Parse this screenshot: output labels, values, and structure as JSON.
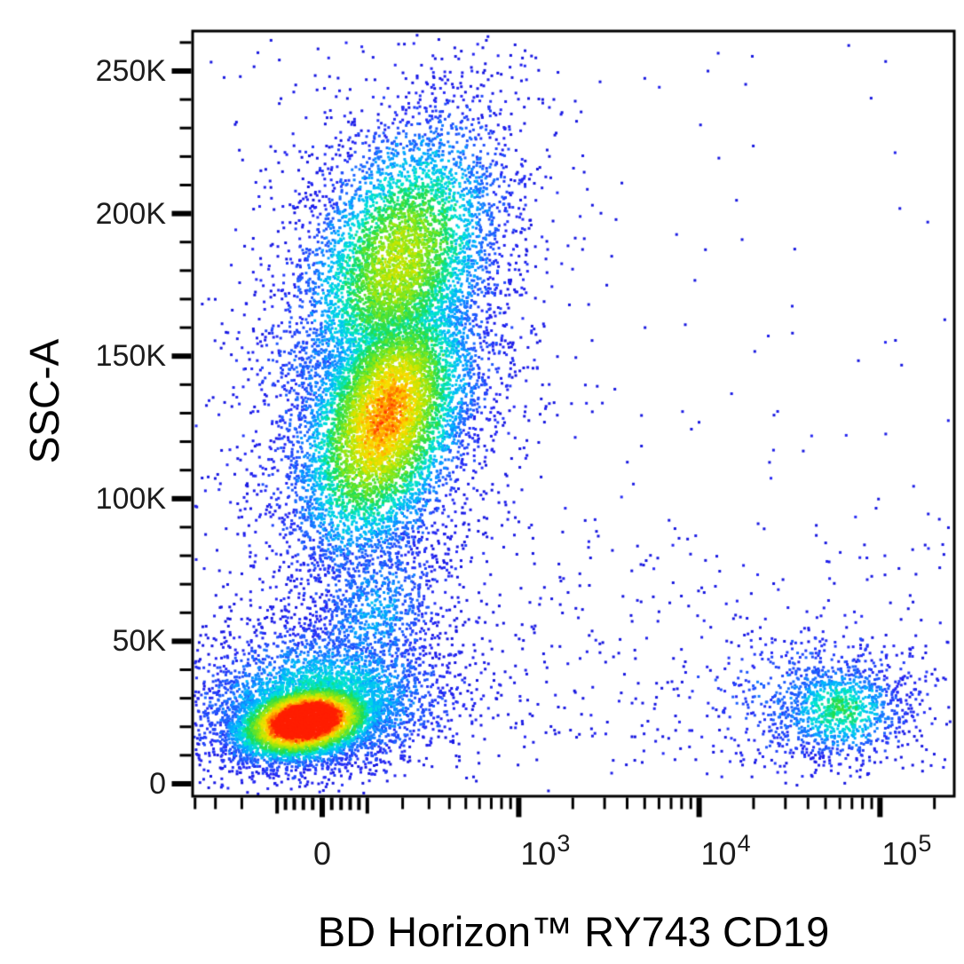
{
  "chart_data": {
    "type": "scatter",
    "subtype": "flow-cytometry-density-dot-plot",
    "title": "",
    "background_color": "#ffffff",
    "axis_color": "#000000",
    "x_axis": {
      "label": "BD Horizon™ RY743 CD19",
      "scale": "biexponential",
      "asinh_linearization_constant": 165,
      "range": [
        -420,
        256000
      ],
      "major_ticks": [
        {
          "value": 0,
          "base": "0",
          "exponent": ""
        },
        {
          "value": 1000,
          "base": "10",
          "exponent": "3"
        },
        {
          "value": 10000,
          "base": "10",
          "exponent": "4"
        },
        {
          "value": 100000,
          "base": "10",
          "exponent": "5"
        }
      ],
      "minor_ticks": [
        -400,
        -300,
        -200,
        -100,
        -80,
        -60,
        -40,
        -20,
        20,
        40,
        60,
        80,
        100,
        200,
        300,
        400,
        500,
        600,
        700,
        800,
        900,
        2000,
        3000,
        4000,
        5000,
        6000,
        7000,
        8000,
        9000,
        20000,
        30000,
        40000,
        50000,
        60000,
        70000,
        80000,
        90000,
        200000
      ]
    },
    "y_axis": {
      "label": "SSC-A",
      "scale": "linear",
      "range_k": [
        -4,
        264
      ],
      "major_ticks": [
        {
          "k": 250,
          "label": "250K"
        },
        {
          "k": 200,
          "label": "200K"
        },
        {
          "k": 150,
          "label": "150K"
        },
        {
          "k": 100,
          "label": "100K"
        },
        {
          "k": 50,
          "label": "50K"
        },
        {
          "k": 0,
          "label": "0"
        }
      ],
      "minor_step_k": 10
    },
    "populations": [
      {
        "name": "granulocytes-upper",
        "type": "gaussian",
        "cd19_median": 190,
        "ssc_median_k": 183,
        "spread_x_asinh": 0.66,
        "spread_ssc_k": 26,
        "corr": -0.35,
        "events": 4200,
        "peak_density": 0.72,
        "decay": 0.4
      },
      {
        "name": "granulocytes-core",
        "type": "gaussian",
        "cd19_median": 150,
        "ssc_median_k": 129,
        "spread_x_asinh": 0.59,
        "spread_ssc_k": 26,
        "corr": -0.4,
        "events": 6000,
        "peak_density": 0.9,
        "decay": 0.4
      },
      {
        "name": "granulocytes-halo",
        "type": "gaussian",
        "cd19_median": 140,
        "ssc_median_k": 150,
        "spread_x_asinh": 1.0,
        "spread_ssc_k": 52,
        "corr": -0.3,
        "events": 2400,
        "peak_density": 0.3,
        "decay": 0.5
      },
      {
        "name": "lymphocytes-core",
        "type": "gaussian",
        "cd19_median": -35,
        "ssc_median_k": 22,
        "spread_x_asinh": 0.5,
        "spread_ssc_k": 7.5,
        "corr": -0.25,
        "events": 5200,
        "peak_density": 1.3,
        "decay": 0.45
      },
      {
        "name": "lymphocytes-halo",
        "type": "gaussian",
        "cd19_median": -5,
        "ssc_median_k": 30,
        "spread_x_asinh": 0.95,
        "spread_ssc_k": 15,
        "corr": -0.1,
        "events": 2500,
        "peak_density": 0.45,
        "decay": 0.5
      },
      {
        "name": "monocyte-bridge",
        "type": "gaussian",
        "cd19_median": 120,
        "ssc_median_k": 60,
        "spread_x_asinh": 0.5,
        "spread_ssc_k": 18,
        "corr": -0.2,
        "events": 900,
        "peak_density": 0.3,
        "decay": 0.5
      },
      {
        "name": "cd19-pos-b-cells-core",
        "type": "gaussian",
        "cd19_median": 60000,
        "ssc_median_k": 26,
        "spread_x_asinh": 0.45,
        "spread_ssc_k": 9,
        "corr": 0,
        "events": 950,
        "peak_density": 0.52,
        "decay": 0.45
      },
      {
        "name": "cd19-pos-b-cells-halo",
        "type": "gaussian",
        "cd19_median": 40000,
        "ssc_median_k": 30,
        "spread_x_asinh": 0.95,
        "spread_ssc_k": 16,
        "corr": 0,
        "events": 430,
        "peak_density": 0.22,
        "decay": 0.5
      },
      {
        "name": "background-sparse",
        "type": "uniform",
        "cd19_range": [
          -400,
          240000
        ],
        "ssc_range_k": [
          2,
          262
        ],
        "events": 160
      },
      {
        "name": "background-low-band",
        "type": "uniform",
        "cd19_range": [
          400,
          240000
        ],
        "ssc_range_k": [
          2,
          95
        ],
        "events": 260
      }
    ],
    "density_colormap": {
      "name": "jet",
      "stops": [
        [
          0.0,
          "#1414dc"
        ],
        [
          0.1,
          "#2828f5"
        ],
        [
          0.22,
          "#1e64ff"
        ],
        [
          0.34,
          "#00b4ff"
        ],
        [
          0.45,
          "#00e6d2"
        ],
        [
          0.55,
          "#1edc50"
        ],
        [
          0.66,
          "#78e61e"
        ],
        [
          0.76,
          "#c8e600"
        ],
        [
          0.85,
          "#ffdc00"
        ],
        [
          0.93,
          "#ff8200"
        ],
        [
          1.0,
          "#ff1e00"
        ]
      ]
    }
  }
}
